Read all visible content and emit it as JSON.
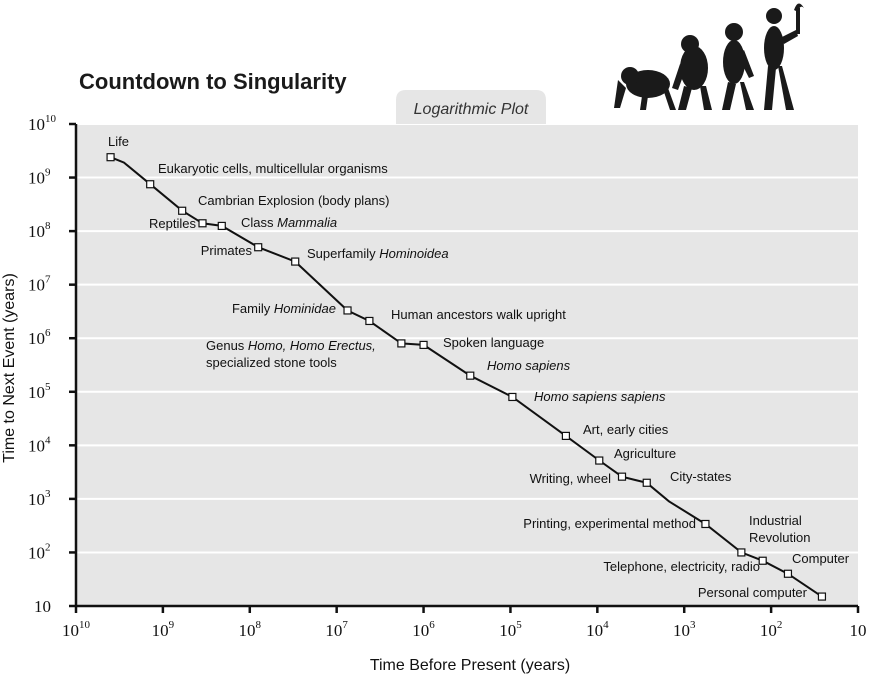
{
  "chart_data": {
    "type": "scatter",
    "title": "Countdown to Singularity",
    "subtitle": "Logarithmic Plot",
    "xlabel": "Time Before Present (years)",
    "ylabel": "Time to Next Event (years)",
    "x_scale": "log",
    "y_scale": "log",
    "x_reversed": true,
    "xlim": [
      10000000000,
      10
    ],
    "ylim": [
      10,
      10000000000
    ],
    "grid": true,
    "x_ticks": [
      {
        "base": "10",
        "exp": "10",
        "value": 10000000000
      },
      {
        "base": "10",
        "exp": "9",
        "value": 1000000000
      },
      {
        "base": "10",
        "exp": "8",
        "value": 100000000
      },
      {
        "base": "10",
        "exp": "7",
        "value": 10000000
      },
      {
        "base": "10",
        "exp": "6",
        "value": 1000000
      },
      {
        "base": "10",
        "exp": "5",
        "value": 100000
      },
      {
        "base": "10",
        "exp": "4",
        "value": 10000
      },
      {
        "base": "10",
        "exp": "3",
        "value": 1000
      },
      {
        "base": "10",
        "exp": "2",
        "value": 100
      },
      {
        "base": "10",
        "exp": "",
        "value": 10
      }
    ],
    "y_ticks": [
      {
        "base": "10",
        "exp": "10",
        "value": 10000000000
      },
      {
        "base": "10",
        "exp": "9",
        "value": 1000000000
      },
      {
        "base": "10",
        "exp": "8",
        "value": 100000000
      },
      {
        "base": "10",
        "exp": "7",
        "value": 10000000
      },
      {
        "base": "10",
        "exp": "6",
        "value": 1000000
      },
      {
        "base": "10",
        "exp": "5",
        "value": 100000
      },
      {
        "base": "10",
        "exp": "4",
        "value": 10000
      },
      {
        "base": "10",
        "exp": "3",
        "value": 1000
      },
      {
        "base": "10",
        "exp": "2",
        "value": 100
      },
      {
        "base": "10",
        "exp": "",
        "value": 10
      }
    ],
    "points": [
      {
        "x": 4000000000,
        "y": 2400000000
      },
      {
        "x": 1400000000,
        "y": 750000000
      },
      {
        "x": 600000000,
        "y": 240000000
      },
      {
        "x": 350000000,
        "y": 140000000
      },
      {
        "x": 210000000,
        "y": 125000000
      },
      {
        "x": 80000000,
        "y": 50000000
      },
      {
        "x": 30000000,
        "y": 27000000
      },
      {
        "x": 7500000,
        "y": 3300000
      },
      {
        "x": 4200000,
        "y": 2100000
      },
      {
        "x": 1800000,
        "y": 800000
      },
      {
        "x": 1000000,
        "y": 750000
      },
      {
        "x": 290000,
        "y": 200000
      },
      {
        "x": 95000,
        "y": 80000
      },
      {
        "x": 23000,
        "y": 15000
      },
      {
        "x": 9500,
        "y": 5200
      },
      {
        "x": 5200,
        "y": 2600
      },
      {
        "x": 2700,
        "y": 2000
      },
      {
        "x": 570,
        "y": 340
      },
      {
        "x": 220,
        "y": 100
      },
      {
        "x": 125,
        "y": 70
      },
      {
        "x": 64,
        "y": 40
      },
      {
        "x": 26,
        "y": 15
      }
    ],
    "line_path": [
      {
        "x": 4000000000,
        "y": 2400000000
      },
      {
        "x": 2800000000,
        "y": 1900000000
      },
      {
        "x": 1400000000,
        "y": 750000000
      },
      {
        "x": 600000000,
        "y": 240000000
      },
      {
        "x": 350000000,
        "y": 140000000
      },
      {
        "x": 210000000,
        "y": 125000000
      },
      {
        "x": 80000000,
        "y": 50000000
      },
      {
        "x": 30000000,
        "y": 27000000
      },
      {
        "x": 7500000,
        "y": 3300000
      },
      {
        "x": 4200000,
        "y": 2100000
      },
      {
        "x": 1800000,
        "y": 800000
      },
      {
        "x": 1000000,
        "y": 750000
      },
      {
        "x": 290000,
        "y": 200000
      },
      {
        "x": 95000,
        "y": 80000
      },
      {
        "x": 23000,
        "y": 15000
      },
      {
        "x": 9500,
        "y": 5200
      },
      {
        "x": 5200,
        "y": 2600
      },
      {
        "x": 2700,
        "y": 2000
      },
      {
        "x": 1500,
        "y": 900
      },
      {
        "x": 570,
        "y": 340
      },
      {
        "x": 220,
        "y": 100
      },
      {
        "x": 125,
        "y": 70
      },
      {
        "x": 64,
        "y": 40
      },
      {
        "x": 26,
        "y": 15
      }
    ],
    "annotations": [
      {
        "runs": [
          {
            "text": "Life"
          }
        ],
        "anchor": "start"
      },
      {
        "runs": [
          {
            "text": "Eukaryotic cells, multicellular organisms"
          }
        ],
        "anchor": "start"
      },
      {
        "runs": [
          {
            "text": "Cambrian Explosion (body plans)"
          }
        ],
        "anchor": "start"
      },
      {
        "runs": [
          {
            "text": "Reptiles"
          }
        ],
        "anchor": "end"
      },
      {
        "runs": [
          {
            "text": "Class "
          },
          {
            "text": "Mammalia",
            "italic": true
          }
        ],
        "anchor": "start"
      },
      {
        "runs": [
          {
            "text": "Primates"
          }
        ],
        "anchor": "end"
      },
      {
        "runs": [
          {
            "text": "Superfamily "
          },
          {
            "text": "Hominoidea",
            "italic": true
          }
        ],
        "anchor": "start"
      },
      {
        "runs": [
          {
            "text": "Family "
          },
          {
            "text": "Hominidae",
            "italic": true
          }
        ],
        "anchor": "end"
      },
      {
        "runs": [
          {
            "text": "Human ancestors walk upright"
          }
        ],
        "anchor": "start"
      },
      {
        "runs": [
          {
            "text": "Genus "
          },
          {
            "text": "Homo, Homo Erectus,",
            "italic": true
          }
        ],
        "anchor": "start"
      },
      {
        "runs": [
          {
            "text": "specialized stone tools"
          }
        ],
        "anchor": "start"
      },
      {
        "runs": [
          {
            "text": "Spoken language"
          }
        ],
        "anchor": "start"
      },
      {
        "runs": [
          {
            "text": "Homo sapiens",
            "italic": true
          }
        ],
        "anchor": "start"
      },
      {
        "runs": [
          {
            "text": "Homo sapiens sapiens",
            "italic": true
          }
        ],
        "anchor": "start"
      },
      {
        "runs": [
          {
            "text": "Art, early cities"
          }
        ],
        "anchor": "start"
      },
      {
        "runs": [
          {
            "text": "Agriculture"
          }
        ],
        "anchor": "start"
      },
      {
        "runs": [
          {
            "text": "Writing, wheel"
          }
        ],
        "anchor": "end"
      },
      {
        "runs": [
          {
            "text": "City-states"
          }
        ],
        "anchor": "start"
      },
      {
        "runs": [
          {
            "text": "Printing, experimental method"
          }
        ],
        "anchor": "end"
      },
      {
        "runs": [
          {
            "text": "Industrial"
          }
        ],
        "anchor": "start"
      },
      {
        "runs": [
          {
            "text": "Revolution"
          }
        ],
        "anchor": "start"
      },
      {
        "runs": [
          {
            "text": "Telephone,  electricity, radio"
          }
        ],
        "anchor": "end"
      },
      {
        "runs": [
          {
            "text": "Computer"
          }
        ],
        "anchor": "start"
      },
      {
        "runs": [
          {
            "text": "Personal computer"
          }
        ],
        "anchor": "end"
      }
    ],
    "colors": {
      "plot_background": "#e6e6e6",
      "gridline": "#ffffff",
      "line": "#111111",
      "marker_fill": "#ffffff"
    }
  },
  "illustration": {
    "icon": "human-evolution-silhouettes-icon"
  }
}
